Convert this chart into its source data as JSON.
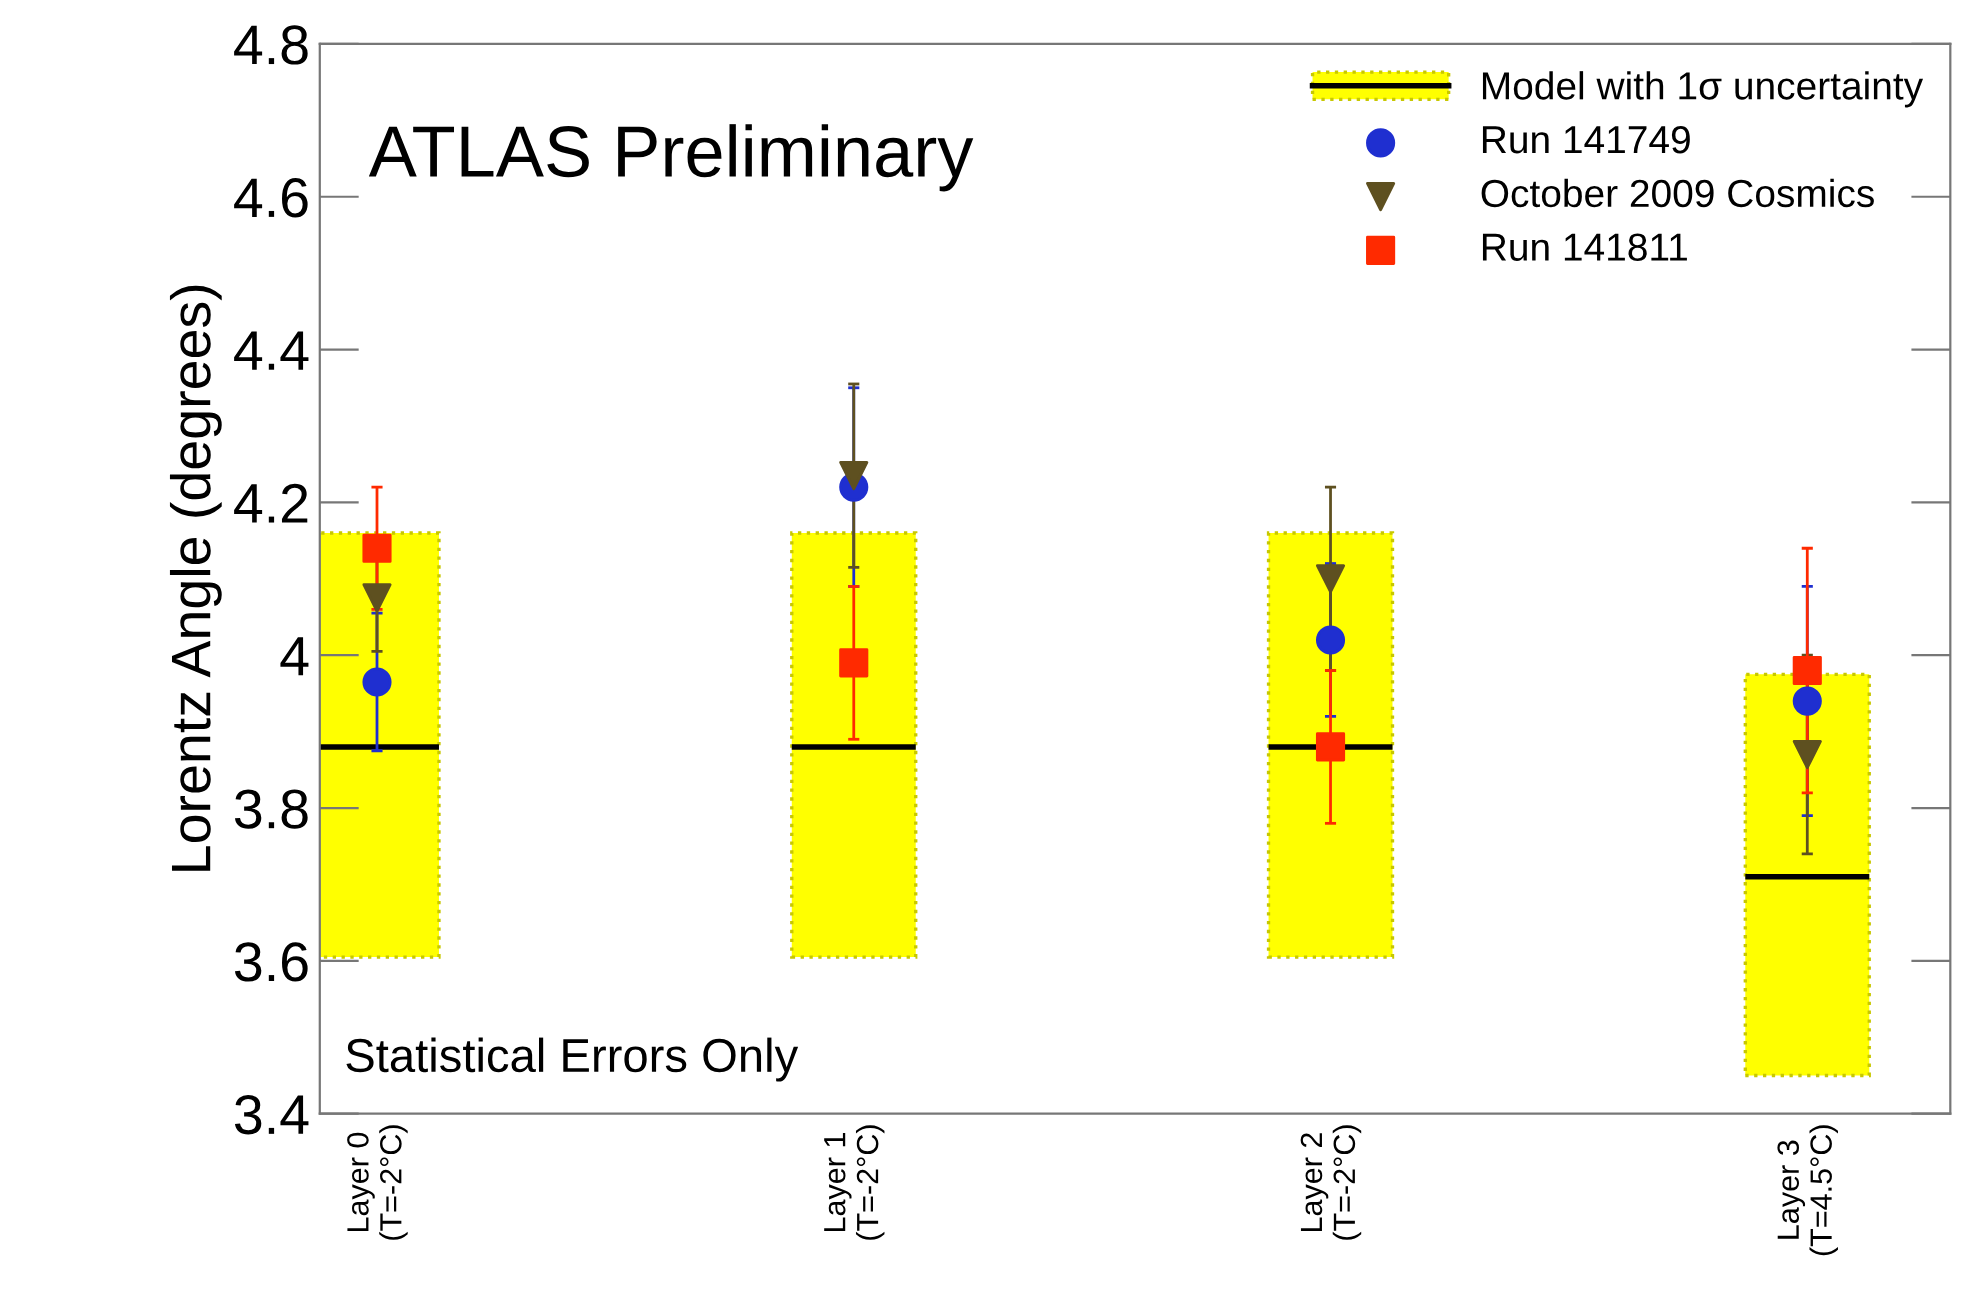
{
  "chart_data": {
    "type": "scatter",
    "ylabel": "Lorentz Angle (degrees)",
    "annotations": [
      "ATLAS Preliminary",
      "Statistical Errors Only"
    ],
    "categories": [
      "Layer 0\n(T=-2°C)",
      "Layer 1\n(T=-2°C)",
      "Layer 2\n(T=-2°C)",
      "Layer 3\n(T=4.5°C)"
    ],
    "ylim": [
      3.4,
      4.8
    ],
    "yticks": [
      3.4,
      3.6,
      3.8,
      4,
      4.2,
      4.4,
      4.6,
      4.8
    ],
    "legend": "top right",
    "grid": false,
    "series": [
      {
        "type": "box",
        "name": "Model with 1σ uncertainty",
        "color": "#ffff00",
        "boxes": [
          {
            "low": 3.605,
            "q1": 3.605,
            "median": 3.88,
            "q3": 4.16,
            "high": 4.16
          },
          {
            "low": 3.605,
            "q1": 3.605,
            "median": 3.88,
            "q3": 4.16,
            "high": 4.16
          },
          {
            "low": 3.605,
            "q1": 3.605,
            "median": 3.88,
            "q3": 4.16,
            "high": 4.16
          },
          {
            "low": 3.45,
            "q1": 3.45,
            "median": 3.71,
            "q3": 3.975,
            "high": 3.975
          }
        ]
      },
      {
        "name": "Run 141749",
        "color": "#1f2fd0",
        "marker": "circle",
        "values": [
          3.965,
          4.22,
          4.02,
          3.94
        ],
        "errors": [
          0.09,
          0.13,
          0.1,
          0.15
        ]
      },
      {
        "name": "October 2009 Cosmics",
        "color": "#5e5020",
        "marker": "triangle",
        "values": [
          4.075,
          4.235,
          4.1,
          3.87
        ],
        "errors": [
          0.07,
          0.12,
          0.12,
          0.13
        ]
      },
      {
        "name": "Run 141811",
        "color": "#ff2a00",
        "marker": "square",
        "values": [
          4.14,
          3.99,
          3.88,
          3.98
        ],
        "errors": [
          0.08,
          0.1,
          0.1,
          0.16
        ]
      }
    ]
  }
}
